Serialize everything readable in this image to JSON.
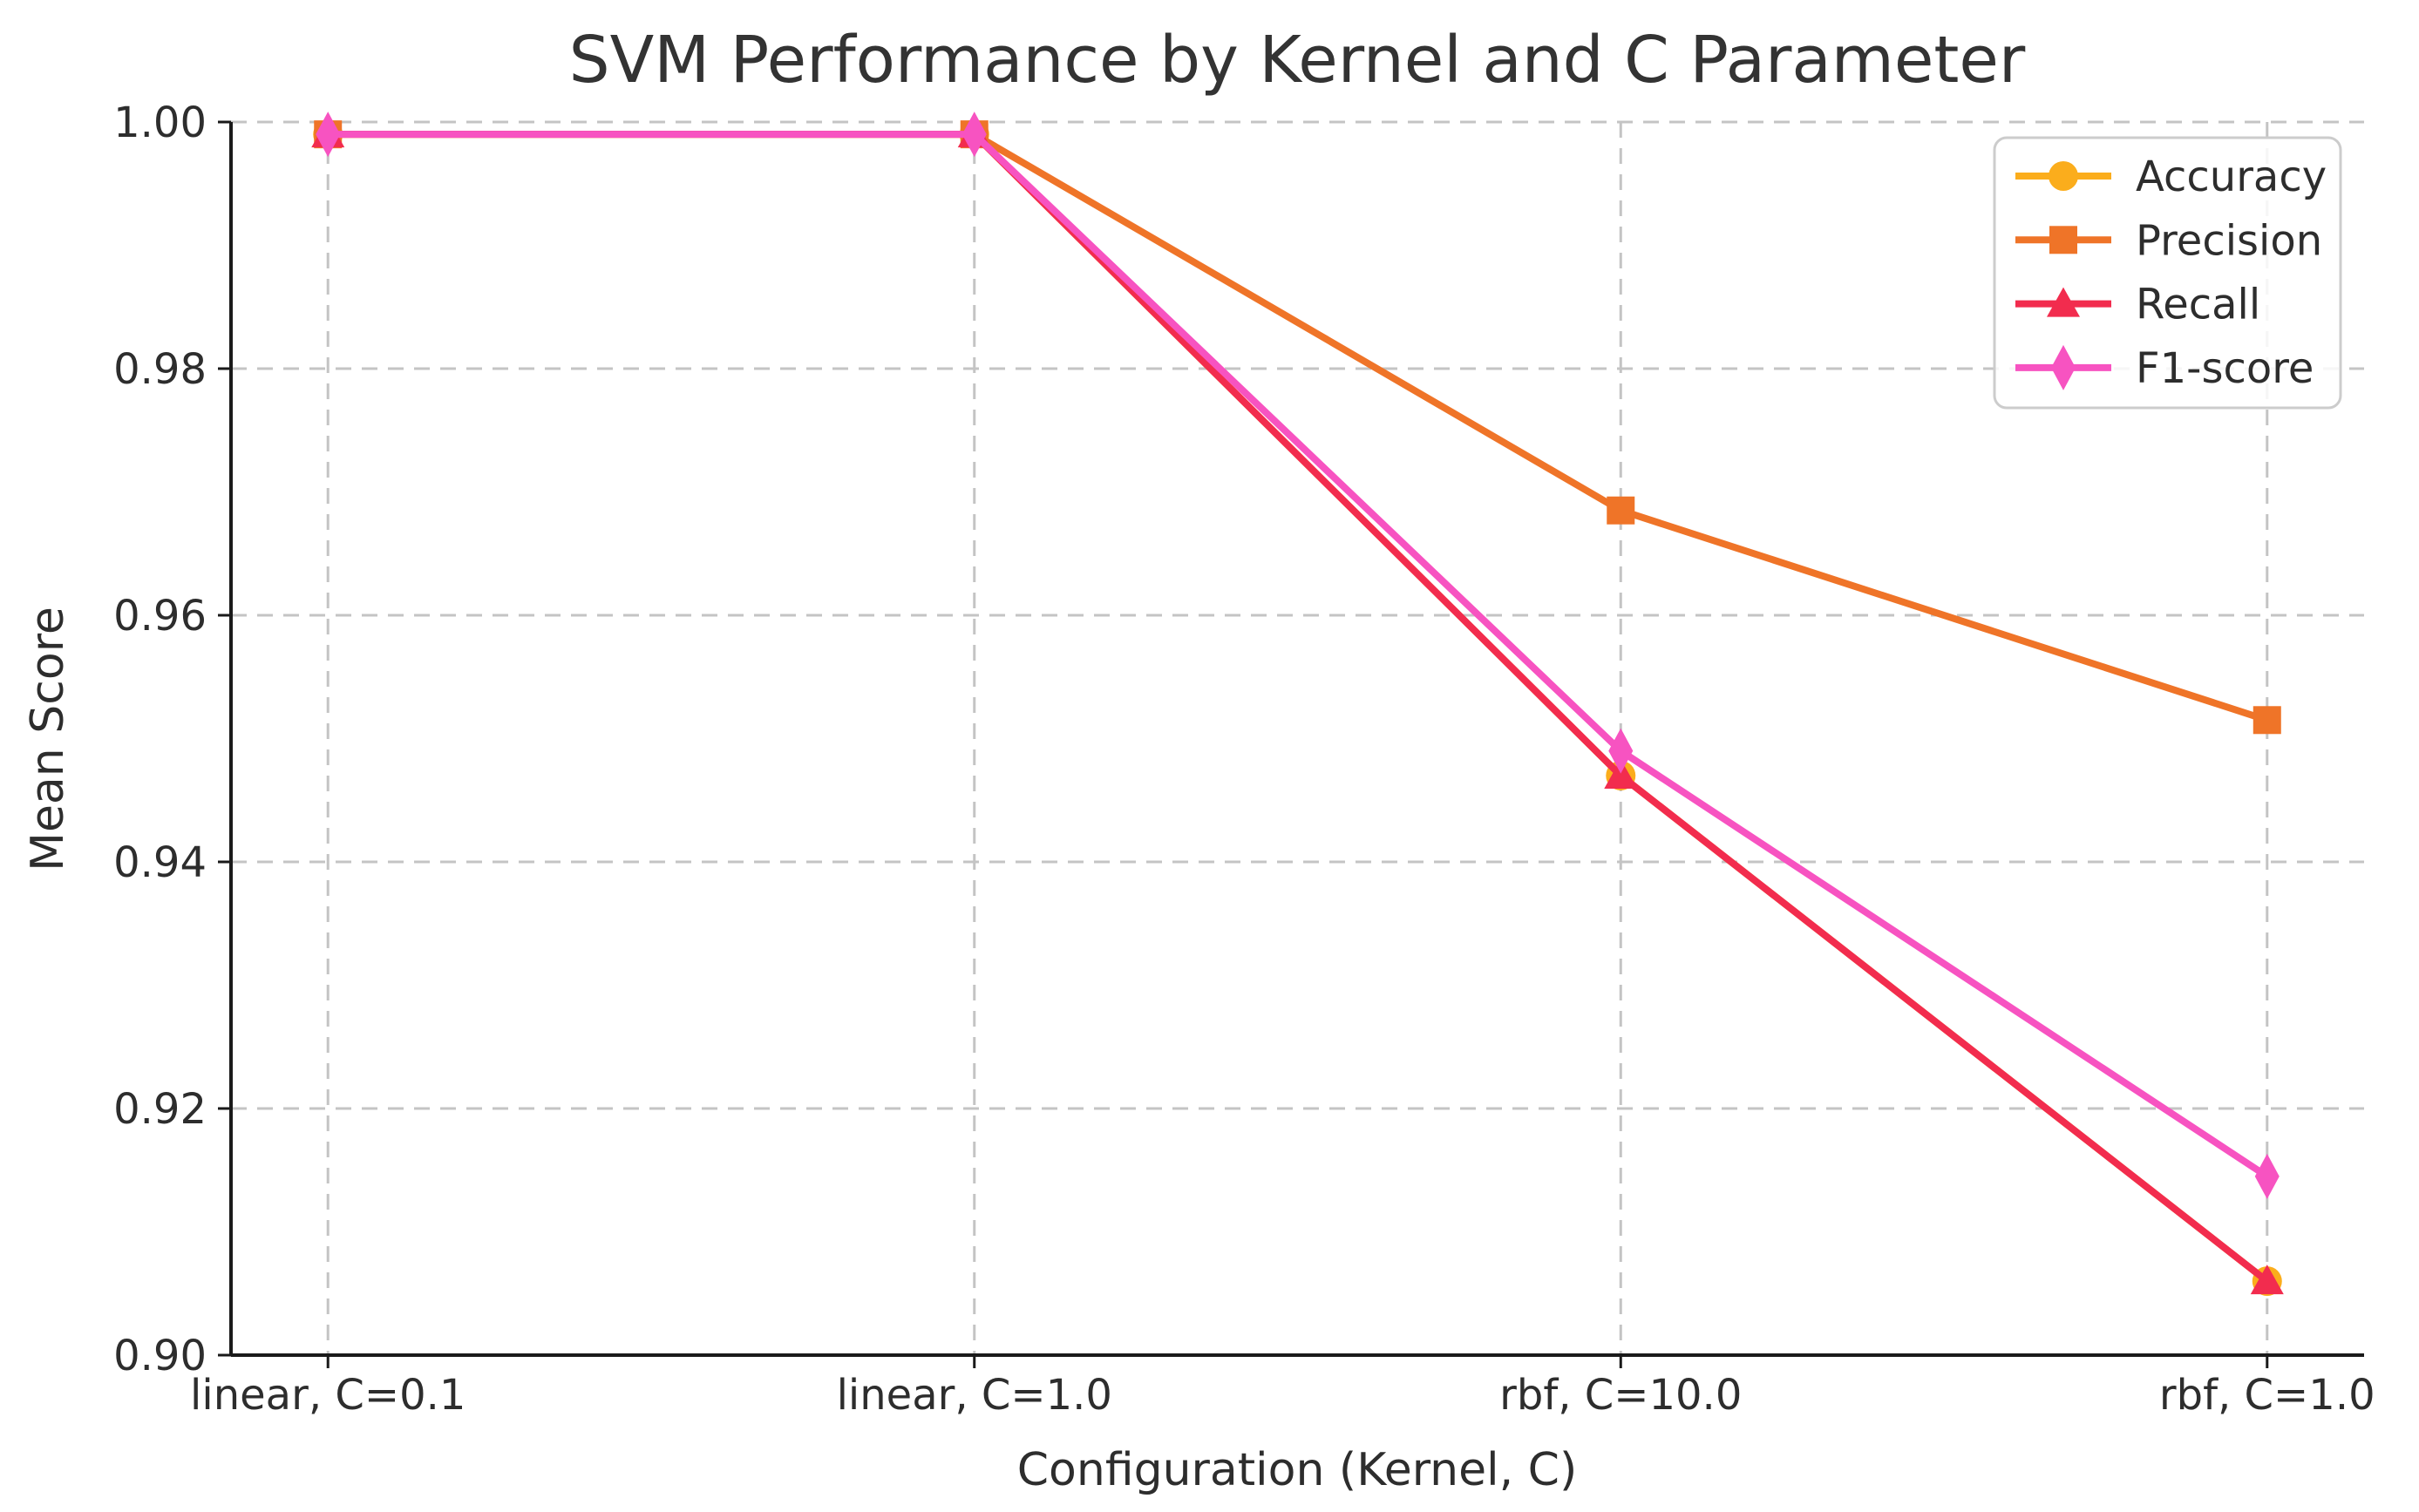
{
  "chart_data": {
    "type": "line",
    "title": "SVM Performance by Kernel and C Parameter",
    "xlabel": "Configuration (Kernel, C)",
    "ylabel": "Mean Score",
    "categories": [
      "linear, C=0.1",
      "linear, C=1.0",
      "rbf, C=10.0",
      "rbf, C=1.0"
    ],
    "ylim": [
      0.9,
      1.0
    ],
    "yticks": [
      0.9,
      0.92,
      0.94,
      0.96,
      0.98,
      1.0
    ],
    "ytick_labels": [
      "0.90",
      "0.92",
      "0.94",
      "0.96",
      "0.98",
      "1.00"
    ],
    "grid": "dashed-both-axes",
    "legend": {
      "position": "upper right",
      "entries": [
        "Accuracy",
        "Precision",
        "Recall",
        "F1-score"
      ]
    },
    "series": [
      {
        "name": "Accuracy",
        "color": "#FBAD1C",
        "marker": "circle",
        "values": [
          0.999,
          0.999,
          0.947,
          0.906
        ]
      },
      {
        "name": "Precision",
        "color": "#EF7428",
        "marker": "square",
        "values": [
          0.999,
          0.999,
          0.9685,
          0.9515
        ]
      },
      {
        "name": "Recall",
        "color": "#F22C4E",
        "marker": "triangle",
        "values": [
          0.999,
          0.999,
          0.947,
          0.906
        ]
      },
      {
        "name": "F1-score",
        "color": "#F753C1",
        "marker": "diamond",
        "values": [
          0.999,
          0.999,
          0.949,
          0.9145
        ]
      }
    ]
  }
}
